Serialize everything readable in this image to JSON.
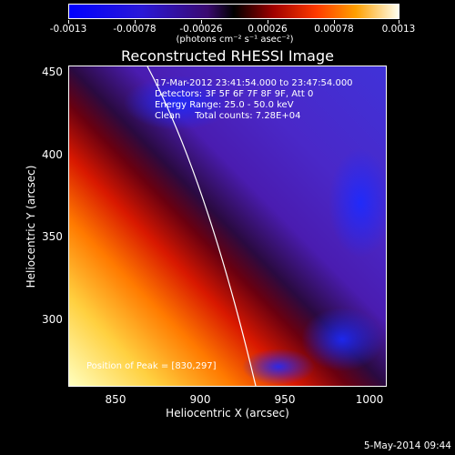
{
  "colorbar": {
    "tick_labels": [
      "-0.0013",
      "-0.00078",
      "-0.00026",
      "0.00026",
      "0.00078",
      "0.0013"
    ],
    "units": "(photons cm⁻² s⁻¹ asec⁻²)"
  },
  "plot": {
    "title": "Reconstructed RHESSI Image",
    "info_lines": [
      "17-Mar-2012 23:41:54.000 to 23:47:54.000",
      "Detectors: 3F 5F 6F 7F 8F 9F, Att 0",
      "Energy Range: 25.0 - 50.0 keV",
      "Clean     Total counts: 7.28E+04"
    ],
    "peak_text": "Position of Peak = [830,297]",
    "xlabel": "Heliocentric X (arcsec)",
    "ylabel": "Heliocentric Y (arcsec)",
    "xticks": [
      "850",
      "900",
      "950",
      "1000"
    ],
    "yticks": [
      "450",
      "400",
      "350",
      "300"
    ]
  },
  "timestamp": "5-May-2014 09:44",
  "colors": {
    "background": "#000000",
    "foreground": "#ffffff"
  }
}
